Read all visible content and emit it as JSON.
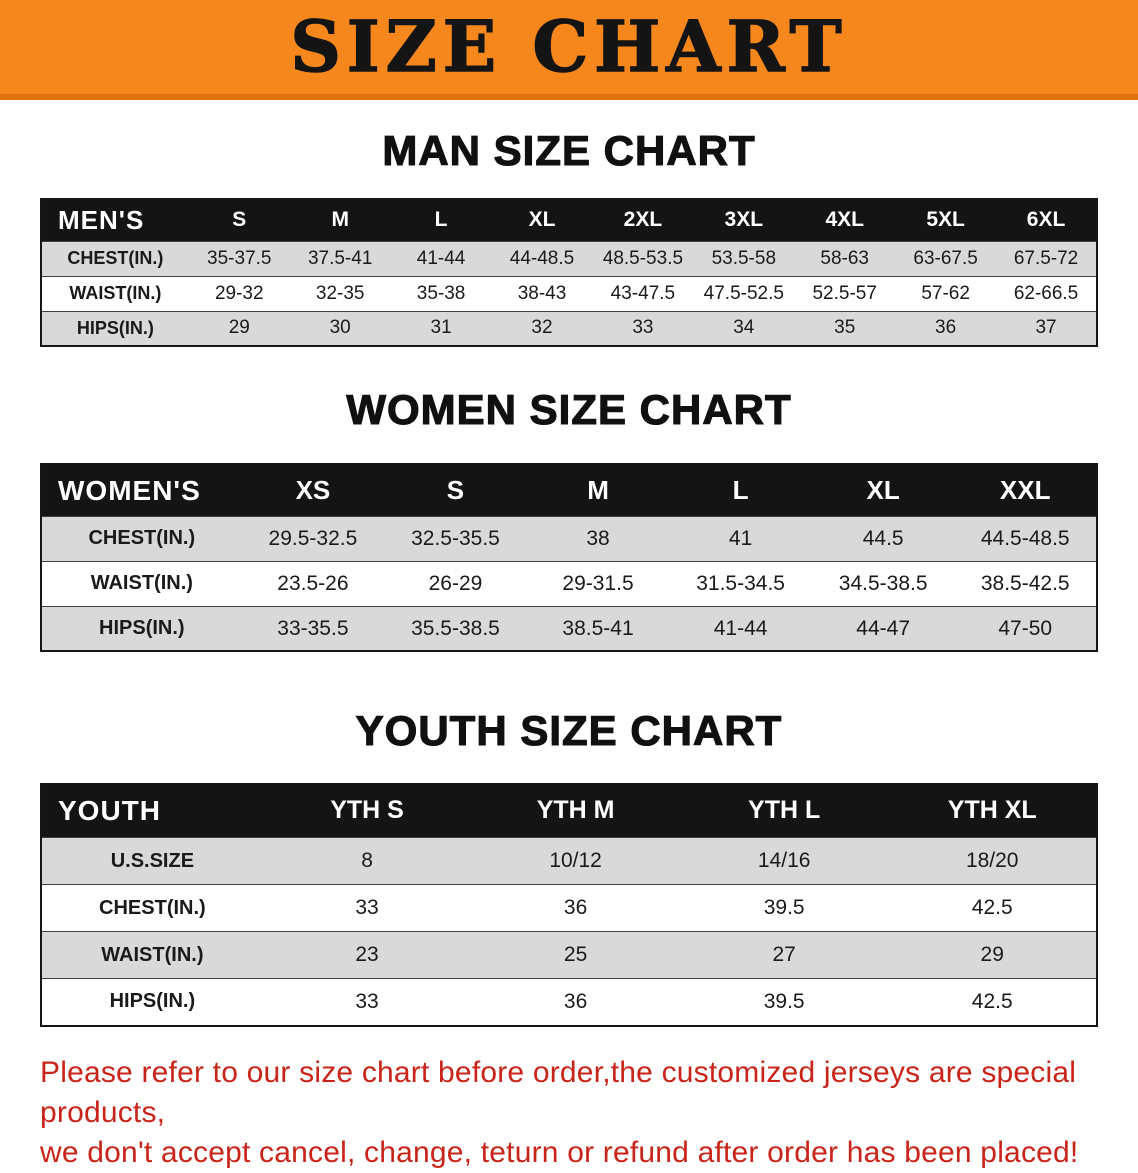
{
  "colors": {
    "banner-bg": "#f6871c",
    "banner-edge": "#e0730f",
    "header-bg": "#141414",
    "stripe": "#d9d9d9",
    "footer-red": "#c9241a"
  },
  "banner": {
    "title": "SIZE CHART"
  },
  "sections": [
    {
      "heading": "MAN SIZE CHART",
      "table": {
        "label": "MEN'S",
        "columns": [
          "S",
          "M",
          "L",
          "XL",
          "2XL",
          "3XL",
          "4XL",
          "5XL",
          "6XL"
        ],
        "rows": [
          {
            "label": "CHEST(IN.)",
            "values": [
              "35-37.5",
              "37.5-41",
              "41-44",
              "44-48.5",
              "48.5-53.5",
              "53.5-58",
              "58-63",
              "63-67.5",
              "67.5-72"
            ]
          },
          {
            "label": "WAIST(IN.)",
            "values": [
              "29-32",
              "32-35",
              "35-38",
              "38-43",
              "43-47.5",
              "47.5-52.5",
              "52.5-57",
              "57-62",
              "62-66.5"
            ]
          },
          {
            "label": "HIPS(IN.)",
            "values": [
              "29",
              "30",
              "31",
              "32",
              "33",
              "34",
              "35",
              "36",
              "37"
            ]
          }
        ]
      }
    },
    {
      "heading": "WOMEN SIZE CHART",
      "table": {
        "label": "WOMEN'S",
        "columns": [
          "XS",
          "S",
          "M",
          "L",
          "XL",
          "XXL"
        ],
        "rows": [
          {
            "label": "CHEST(IN.)",
            "values": [
              "29.5-32.5",
              "32.5-35.5",
              "38",
              "41",
              "44.5",
              "44.5-48.5"
            ]
          },
          {
            "label": "WAIST(IN.)",
            "values": [
              "23.5-26",
              "26-29",
              "29-31.5",
              "31.5-34.5",
              "34.5-38.5",
              "38.5-42.5"
            ]
          },
          {
            "label": "HIPS(IN.)",
            "values": [
              "33-35.5",
              "35.5-38.5",
              "38.5-41",
              "41-44",
              "44-47",
              "47-50"
            ]
          }
        ]
      }
    },
    {
      "heading": "YOUTH SIZE CHART",
      "table": {
        "label": "YOUTH",
        "columns": [
          "YTH S",
          "YTH M",
          "YTH L",
          "YTH XL"
        ],
        "rows": [
          {
            "label": "U.S.SIZE",
            "values": [
              "8",
              "10/12",
              "14/16",
              "18/20"
            ]
          },
          {
            "label": "CHEST(IN.)",
            "values": [
              "33",
              "36",
              "39.5",
              "42.5"
            ]
          },
          {
            "label": "WAIST(IN.)",
            "values": [
              "23",
              "25",
              "27",
              "29"
            ]
          },
          {
            "label": "HIPS(IN.)",
            "values": [
              "33",
              "36",
              "39.5",
              "42.5"
            ]
          }
        ]
      }
    }
  ],
  "footer": {
    "lines": [
      "Please refer to our size chart before order,the customized jerseys are special products,",
      "we don't accept cancel, change, teturn or refund after order has been placed!"
    ]
  }
}
